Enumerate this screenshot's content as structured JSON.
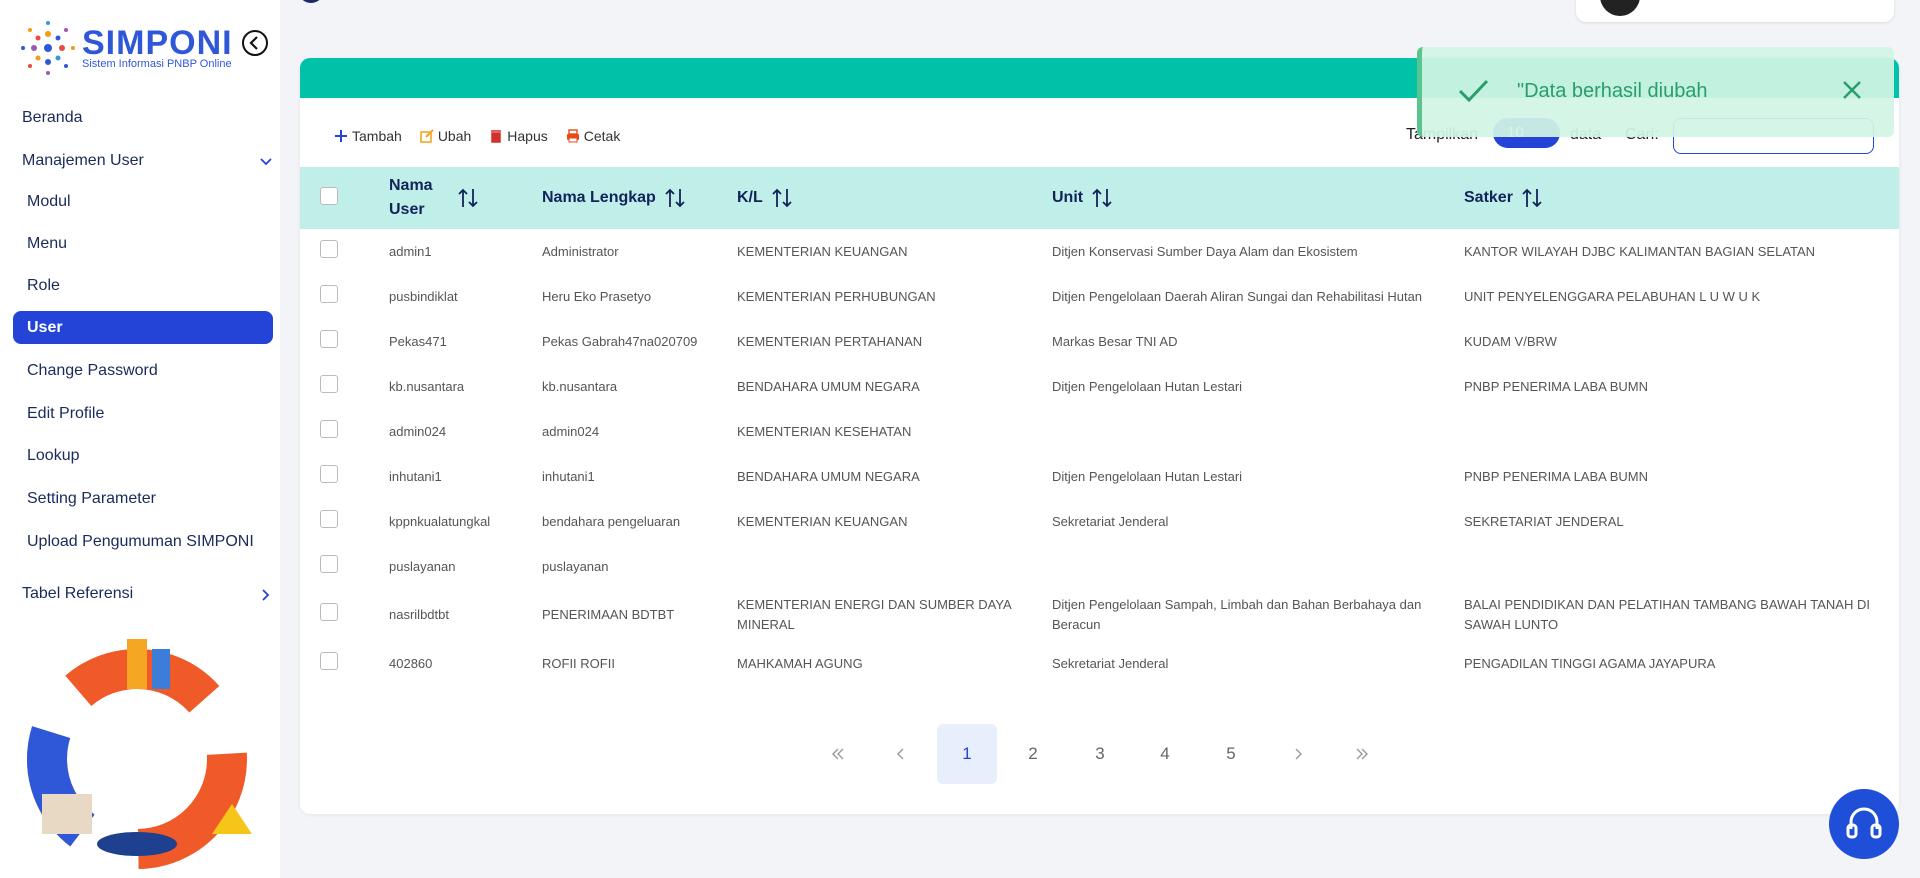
{
  "sidebar": {
    "logo_title": "SIMPONI",
    "logo_subtitle": "Sistem Informasi PNBP Online",
    "menu": [
      {
        "label": "Beranda"
      },
      {
        "label": "Manajemen User",
        "children": [
          {
            "label": "Modul"
          },
          {
            "label": "Menu"
          },
          {
            "label": "Role"
          },
          {
            "label": "User",
            "active": true
          },
          {
            "label": "Change Password"
          },
          {
            "label": "Edit Profile"
          },
          {
            "label": "Lookup"
          },
          {
            "label": "Setting Parameter"
          },
          {
            "label": "Upload Pengumuman SIMPONI"
          }
        ]
      },
      {
        "label": "Tabel Referensi"
      }
    ]
  },
  "toolbar": {
    "buttons": [
      "Tambah",
      "Ubah",
      "Hapus",
      "Cetak"
    ],
    "show_label": "Tampilkan",
    "page_size": "10",
    "data_label": "data",
    "search_label": "Cari:"
  },
  "toast": {
    "message": "\"Data berhasil diubah"
  },
  "table": {
    "headers": [
      "Nama User",
      "Nama Lengkap",
      "K/L",
      "Unit",
      "Satker"
    ],
    "rows": [
      [
        "admin1",
        "Administrator",
        "KEMENTERIAN KEUANGAN",
        "Ditjen Konservasi Sumber Daya Alam dan Ekosistem",
        "KANTOR WILAYAH DJBC KALIMANTAN BAGIAN SELATAN"
      ],
      [
        "pusbindiklat",
        "Heru Eko Prasetyo",
        "KEMENTERIAN PERHUBUNGAN",
        "Ditjen Pengelolaan Daerah Aliran Sungai dan Rehabilitasi Hutan",
        "UNIT PENYELENGGARA PELABUHAN L U W U K"
      ],
      [
        "Pekas471",
        "Pekas Gabrah47na020709",
        "KEMENTERIAN PERTAHANAN",
        "Markas Besar TNI AD",
        "KUDAM V/BRW"
      ],
      [
        "kb.nusantara",
        "kb.nusantara",
        "BENDAHARA UMUM NEGARA",
        "Ditjen Pengelolaan Hutan Lestari",
        "PNBP PENERIMA LABA BUMN"
      ],
      [
        "admin024",
        "admin024",
        "KEMENTERIAN KESEHATAN",
        null,
        null
      ],
      [
        "inhutani1",
        "inhutani1",
        "BENDAHARA UMUM NEGARA",
        "Ditjen Pengelolaan Hutan Lestari",
        "PNBP PENERIMA LABA BUMN"
      ],
      [
        "kppnkualatungkal",
        "bendahara pengeluaran",
        "KEMENTERIAN KEUANGAN",
        "Sekretariat Jenderal",
        "SEKRETARIAT JENDERAL"
      ],
      [
        "puslayanan",
        "puslayanan",
        null,
        null,
        null
      ],
      [
        "nasrilbdtbt",
        "PENERIMAAN BDTBT",
        "KEMENTERIAN ENERGI DAN SUMBER DAYA MINERAL",
        "Ditjen Pengelolaan Sampah, Limbah dan Bahan Berbahaya dan Beracun",
        "BALAI PENDIDIKAN DAN PELATIHAN TAMBANG BAWAH TANAH DI SAWAH LUNTO"
      ],
      [
        "402860",
        "ROFII ROFII",
        "MAHKAMAH AGUNG",
        "Sekretariat Jenderal",
        "PENGADILAN TINGGI AGAMA JAYAPURA"
      ]
    ]
  },
  "pagination": {
    "pages": [
      1,
      2,
      3,
      4,
      5
    ],
    "current_page": 1
  }
}
